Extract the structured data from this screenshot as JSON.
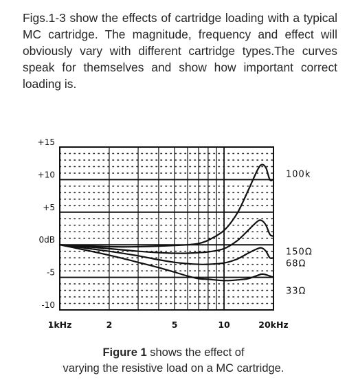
{
  "intro_text": "Figs.1-3 show the effects of cartridge loading with a typical MC cartridge. The magnitude, frequency and effect will obviously vary with different cartridge types.The curves speak for themselves and show how important correct loading is.",
  "caption": {
    "figure_label": "Figure 1",
    "line1_rest": "shows the effect of",
    "line2": "varying the resistive load on a MC cartridge."
  },
  "chart_data": {
    "type": "line",
    "title": "",
    "xlabel": "",
    "ylabel": "",
    "x_scale": "log",
    "xlim": [
      1,
      20
    ],
    "ylim": [
      -10,
      15
    ],
    "y_ticks": [
      {
        "value": 15,
        "label": "+15"
      },
      {
        "value": 10,
        "label": "+10"
      },
      {
        "value": 5,
        "label": "+5"
      },
      {
        "value": 0,
        "label": "0dB"
      },
      {
        "value": -5,
        "label": "-5"
      },
      {
        "value": -10,
        "label": "-10"
      }
    ],
    "x_ticks": [
      {
        "value": 1,
        "label": "1kHz"
      },
      {
        "value": 2,
        "label": "2"
      },
      {
        "value": 5,
        "label": "5"
      },
      {
        "value": 10,
        "label": "10"
      },
      {
        "value": 20,
        "label": "20kHz"
      }
    ],
    "grid": true,
    "series": [
      {
        "name": "100k",
        "x": [
          1,
          2,
          3,
          4,
          5,
          6,
          7,
          8,
          10,
          12,
          14,
          16,
          17,
          18,
          19,
          20
        ],
        "y": [
          0,
          -0.3,
          -0.3,
          -0.2,
          -0.1,
          0,
          0.2,
          0.7,
          2.2,
          4.8,
          8.3,
          11.5,
          12.3,
          11.8,
          10.0,
          10.0
        ]
      },
      {
        "name": "150Ω",
        "x": [
          1,
          2,
          3,
          4,
          5,
          6,
          7,
          8,
          10,
          12,
          14,
          16,
          17,
          18,
          19,
          20
        ],
        "y": [
          0,
          -0.6,
          -1.0,
          -1.2,
          -1.3,
          -1.3,
          -1.2,
          -1.1,
          -0.6,
          0.6,
          2.2,
          3.6,
          3.7,
          3.0,
          1.6,
          1.3
        ]
      },
      {
        "name": "68Ω",
        "x": [
          1,
          2,
          3,
          4,
          5,
          6,
          7,
          8,
          10,
          12,
          14,
          16,
          17,
          18,
          19,
          20
        ],
        "y": [
          0,
          -1.0,
          -1.7,
          -2.3,
          -2.7,
          -2.9,
          -3.0,
          -3.0,
          -2.8,
          -2.2,
          -1.3,
          -0.6,
          -0.5,
          -1.0,
          -2.0,
          -2.0
        ]
      },
      {
        "name": "33Ω",
        "x": [
          1,
          2,
          3,
          4,
          5,
          6,
          7,
          8,
          10,
          12,
          14,
          16,
          17,
          18,
          19,
          20
        ],
        "y": [
          0,
          -1.6,
          -2.7,
          -3.5,
          -4.2,
          -4.8,
          -5.2,
          -5.3,
          -5.5,
          -5.4,
          -5.2,
          -4.7,
          -4.5,
          -4.6,
          -4.8,
          -5.0
        ]
      }
    ]
  }
}
